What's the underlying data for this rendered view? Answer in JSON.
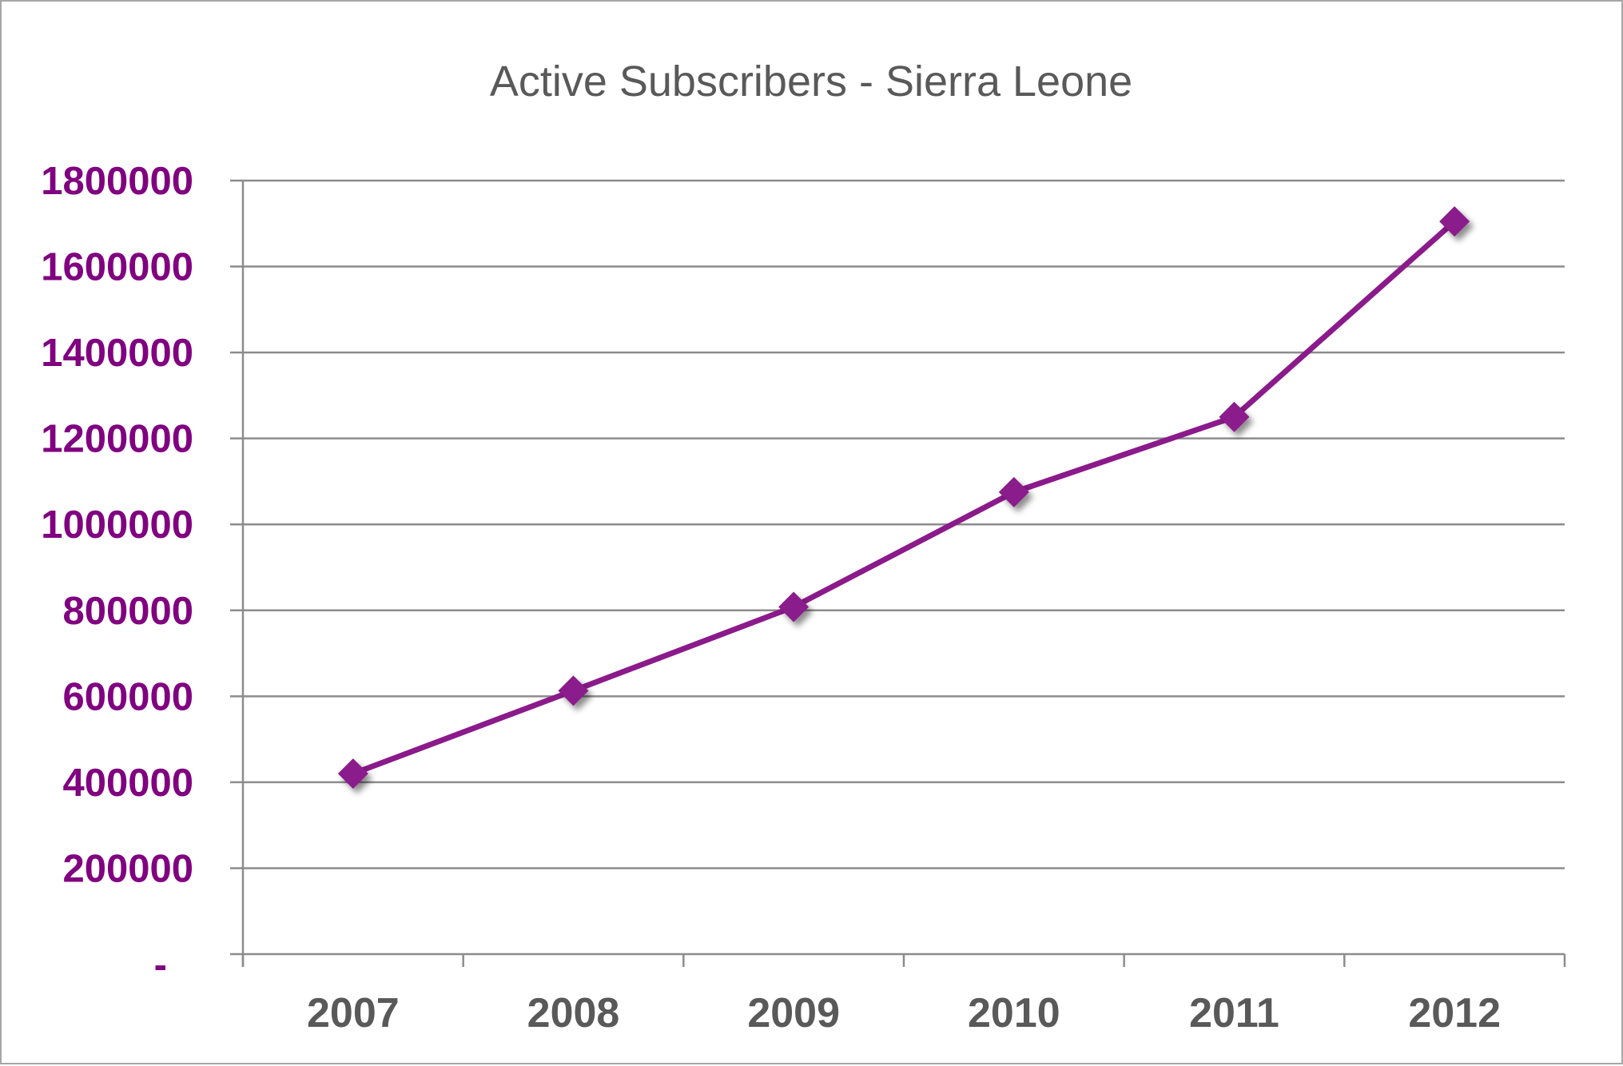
{
  "chart_data": {
    "type": "line",
    "title": "Active Subscribers - Sierra Leone",
    "xlabel": "",
    "ylabel": "",
    "categories": [
      "2007",
      "2008",
      "2009",
      "2010",
      "2011",
      "2012"
    ],
    "series": [
      {
        "values": [
          420000,
          613000,
          808000,
          1075000,
          1250000,
          1705000
        ]
      }
    ],
    "ylim": [
      0,
      1800000
    ],
    "yticks": [
      0,
      200000,
      400000,
      600000,
      800000,
      1000000,
      1200000,
      1400000,
      1600000,
      1800000
    ],
    "ytick_labels": [
      "-",
      "200000",
      "400000",
      "600000",
      "800000",
      "1000000",
      "1200000",
      "1400000",
      "1600000",
      "1800000"
    ],
    "grid": true,
    "legend": "none",
    "marker": "diamond"
  },
  "colors": {
    "series": "#8b1a8b",
    "ytick": "#800080",
    "xtick": "#595959",
    "title": "#595959",
    "grid": "#8c8c8c",
    "axis": "#8c8c8c"
  }
}
